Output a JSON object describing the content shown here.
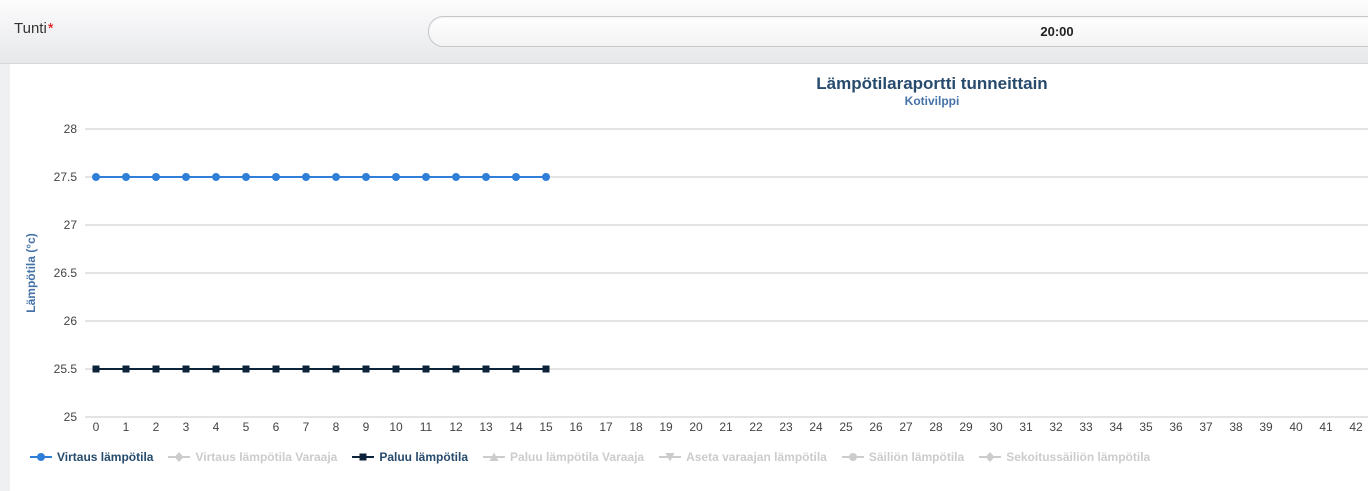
{
  "toolbar": {
    "field_label": "Tunti",
    "required_marker": "*",
    "time_value": "20:00"
  },
  "chart_data": {
    "type": "line",
    "title": "Lämpötilaraportti tunneittain",
    "subtitle": "Kotivilppi",
    "xlabel": "",
    "ylabel": "Lämpötila (°c)",
    "ylim": [
      25,
      28
    ],
    "yticks": [
      25,
      25.5,
      26,
      26.5,
      27,
      27.5,
      28
    ],
    "xticks_visible": [
      0,
      1,
      2,
      3,
      4,
      5,
      6,
      7,
      8,
      9,
      10,
      11,
      12,
      13,
      14,
      15,
      16,
      17,
      18,
      19,
      20,
      21,
      22,
      23,
      24,
      25,
      26,
      27,
      28,
      29,
      30,
      31,
      32,
      33,
      34,
      35,
      36,
      37,
      38,
      39,
      40,
      41,
      42
    ],
    "grid": true,
    "legend_position": "bottom",
    "x": [
      0,
      1,
      2,
      3,
      4,
      5,
      6,
      7,
      8,
      9,
      10,
      11,
      12,
      13,
      14,
      15
    ],
    "series": [
      {
        "name": "Virtaus lämpötila",
        "color": "#2f7ed8",
        "marker": "circle",
        "enabled": true,
        "values": [
          27.5,
          27.5,
          27.5,
          27.5,
          27.5,
          27.5,
          27.5,
          27.5,
          27.5,
          27.5,
          27.5,
          27.5,
          27.5,
          27.5,
          27.5,
          27.5
        ]
      },
      {
        "name": "Virtaus lämpötila Varaaja",
        "color": "#cccccc",
        "marker": "diamond",
        "enabled": false,
        "values": []
      },
      {
        "name": "Paluu lämpötila",
        "color": "#0d233a",
        "marker": "square",
        "enabled": true,
        "values": [
          25.5,
          25.5,
          25.5,
          25.5,
          25.5,
          25.5,
          25.5,
          25.5,
          25.5,
          25.5,
          25.5,
          25.5,
          25.5,
          25.5,
          25.5,
          25.5
        ]
      },
      {
        "name": "Paluu lämpötila Varaaja",
        "color": "#cccccc",
        "marker": "triangle",
        "enabled": false,
        "values": []
      },
      {
        "name": "Aseta varaajan lämpötila",
        "color": "#cccccc",
        "marker": "triangle-down",
        "enabled": false,
        "values": []
      },
      {
        "name": "Säiliön lämpötila",
        "color": "#cccccc",
        "marker": "circle",
        "enabled": false,
        "values": []
      },
      {
        "name": "Sekoitussäiliön lämpötila",
        "color": "#cccccc",
        "marker": "diamond",
        "enabled": false,
        "values": []
      }
    ],
    "disabled_color": "#cccccc",
    "grid_color": "#c8c8c8"
  }
}
